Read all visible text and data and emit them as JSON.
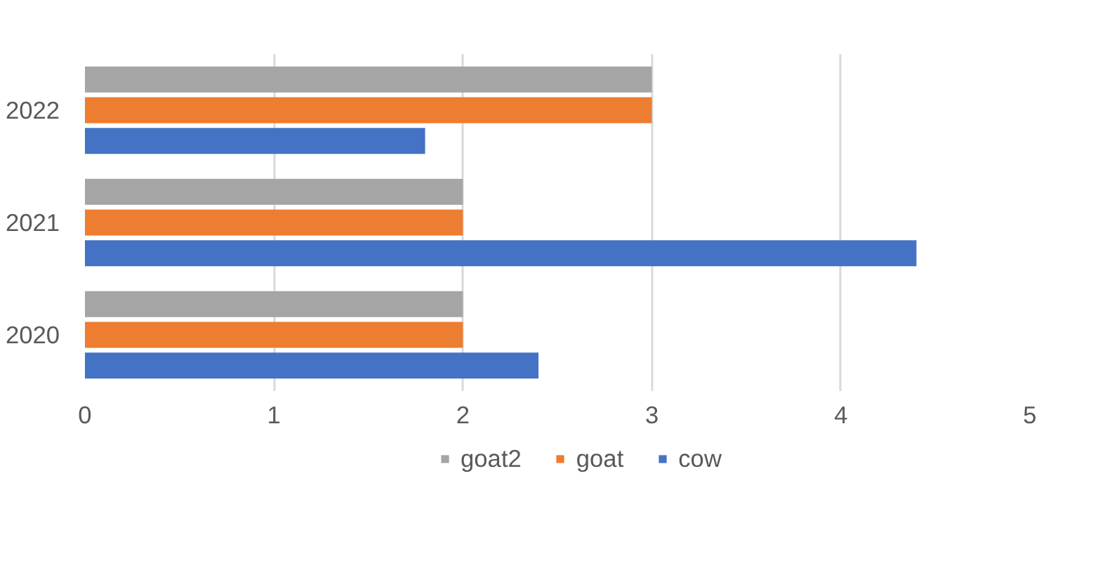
{
  "chart_data": {
    "type": "bar",
    "orientation": "horizontal",
    "categories": [
      "2022",
      "2021",
      "2020"
    ],
    "series": [
      {
        "name": "goat2",
        "color": "#a5a5a5",
        "values": [
          3,
          2,
          2
        ]
      },
      {
        "name": "goat",
        "color": "#ed7d31",
        "values": [
          3,
          2,
          2
        ]
      },
      {
        "name": "cow",
        "color": "#4472c4",
        "values": [
          1.8,
          4.4,
          2.4
        ]
      }
    ],
    "xlim": [
      0,
      5
    ],
    "xticks": [
      0,
      1,
      2,
      3,
      4,
      5
    ],
    "grid": "x",
    "legend": "bottom"
  }
}
